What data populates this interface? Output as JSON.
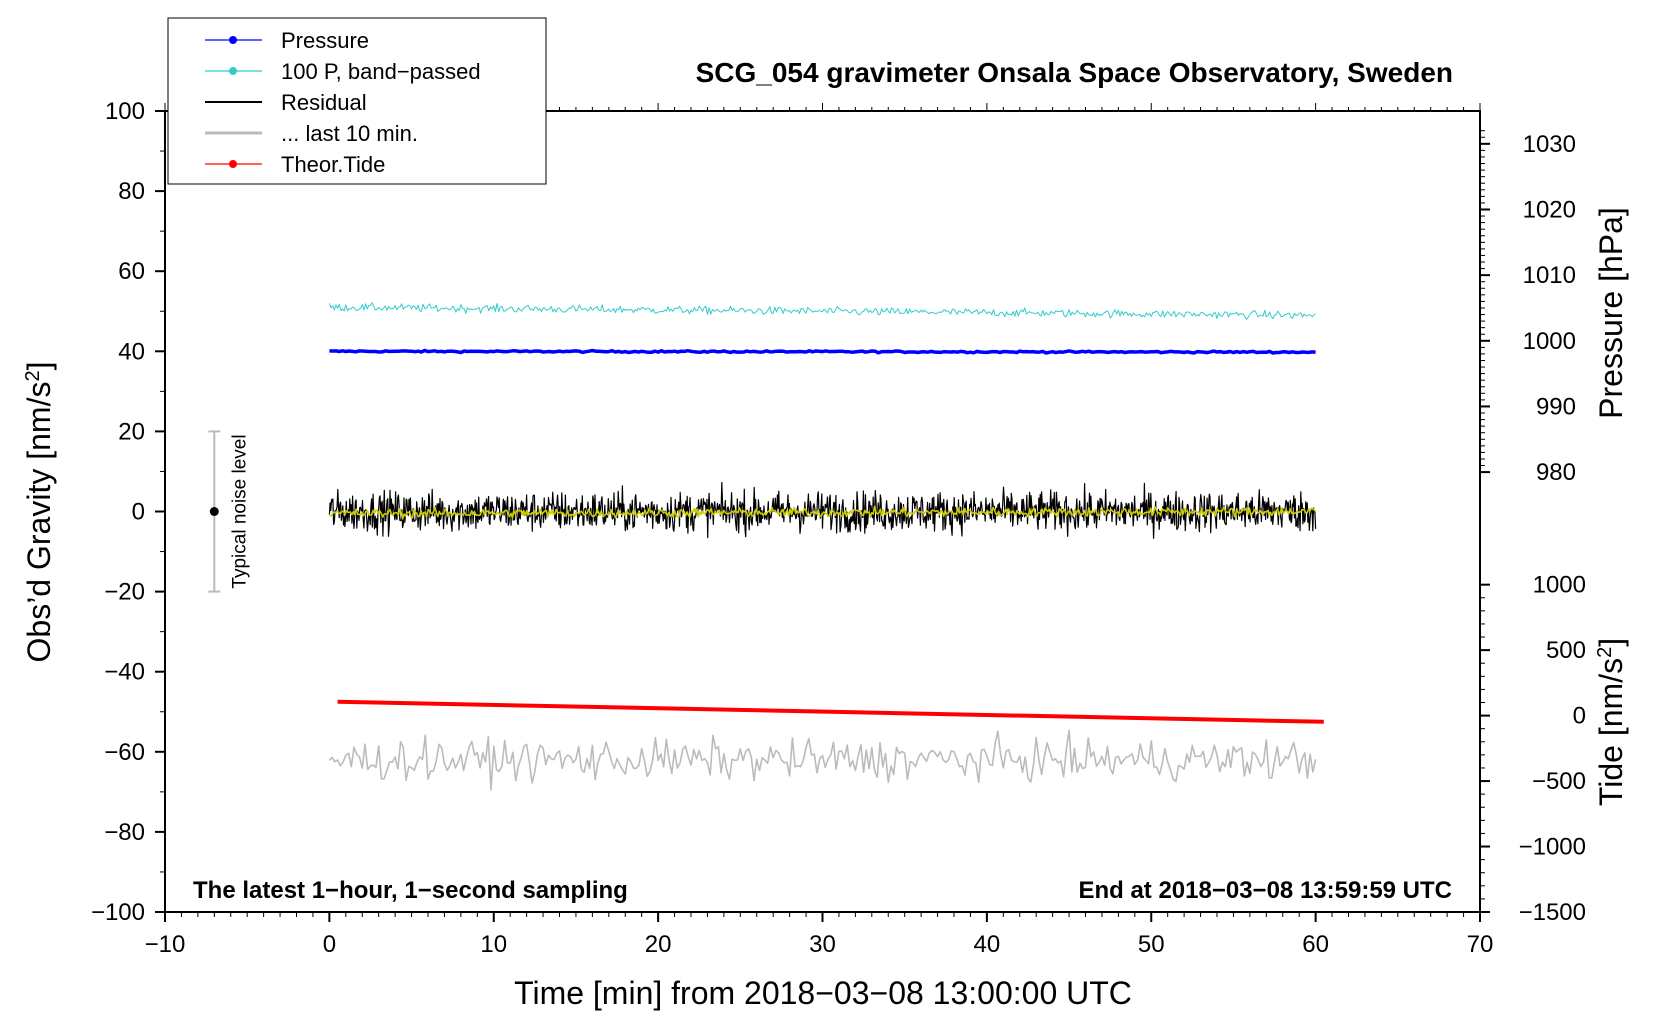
{
  "chart_data": {
    "type": "line",
    "title": "SCG_054 gravimeter Onsala Space Observatory, Sweden",
    "xlabel": "Time [min] from 2018−03−08 13:00:00 UTC",
    "ylabel_left": "Obs’d Gravity [nm/s",
    "ylabel_left_sup": "2",
    "ylabel_left_close": "]",
    "ylabel_right_top": "Pressure [hPa]",
    "ylabel_right_bottom": "Tide [nm/s",
    "ylabel_right_bottom_sup": "2",
    "ylabel_right_bottom_close": "]",
    "xlim": [
      -10,
      70
    ],
    "ylim": [
      -100,
      100
    ],
    "x_ticks": [
      "−10",
      "0",
      "10",
      "20",
      "30",
      "40",
      "50",
      "60",
      "70"
    ],
    "y_ticks": [
      "−100",
      "−80",
      "−60",
      "−40",
      "−20",
      "0",
      "20",
      "40",
      "60",
      "80",
      "100"
    ],
    "pressure_axis": {
      "ticks": [
        "980",
        "990",
        "1000",
        "1010",
        "1020",
        "1030"
      ],
      "range": [
        974,
        1035
      ]
    },
    "tide_axis": {
      "ticks": [
        "−1500",
        "−1000",
        "−500",
        "0",
        "500",
        "1000"
      ],
      "range": [
        -1500,
        1100
      ]
    },
    "annotation_left": "The latest 1−hour, 1−second sampling",
    "annotation_right": "End at 2018−03−08 13:59:59 UTC",
    "noise_bar": {
      "label": "Typical noise level",
      "x": -7,
      "center": 0,
      "low": -20,
      "high": 20
    },
    "legend": [
      {
        "name": "Pressure",
        "color": "#0000ff",
        "marker": true
      },
      {
        "name": "100 P, band−passed",
        "color": "#33cccc",
        "marker": true
      },
      {
        "name": "Residual",
        "color": "#000000",
        "marker": false
      },
      {
        "name": "... last 10 min.",
        "color": "#bbbbbb",
        "marker": false
      },
      {
        "name": "Theor.Tide",
        "color": "#ff0000",
        "marker": true
      }
    ],
    "series": [
      {
        "name": "Pressure",
        "color": "#0000ff",
        "x_range": [
          0,
          60
        ],
        "y_start": 40,
        "y_end": 39.8,
        "noise": 0.15
      },
      {
        "name": "100 P, band−passed",
        "color": "#33cccc",
        "x_range": [
          0,
          60
        ],
        "y_start": 51,
        "y_end": 49,
        "noise": 0.7
      },
      {
        "name": "Residual",
        "color": "#000000",
        "x_range": [
          0,
          60
        ],
        "y_start": 0,
        "y_end": 0,
        "noise": 3.5
      },
      {
        "name": "Residual smoothed",
        "color": "#cccc00",
        "x_range": [
          0,
          60
        ],
        "y_start": -0.5,
        "y_end": 0,
        "noise": 0.8
      },
      {
        "name": "... last 10 min.",
        "color": "#bbbbbb",
        "x_range": [
          0,
          60
        ],
        "y_start": -62,
        "y_end": -62,
        "noise": 3.5
      },
      {
        "name": "Theor.Tide",
        "color": "#ff0000",
        "x_range": [
          0.5,
          60.5
        ],
        "y_start": -47.5,
        "y_end": -52.5,
        "noise": 0
      }
    ]
  }
}
